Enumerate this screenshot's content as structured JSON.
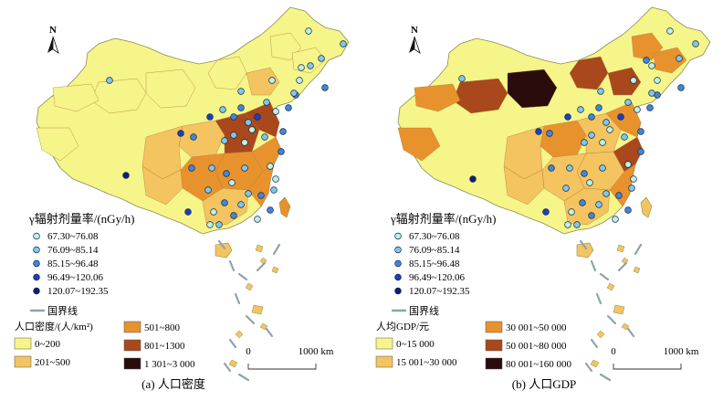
{
  "panels": [
    {
      "id": "a",
      "caption": "(a) 人口密度",
      "points_legend": {
        "title": "γ辐射剂量率/(nGy/h)",
        "classes": [
          {
            "label": "67.30~76.08",
            "color": "#bdf0e8"
          },
          {
            "label": "76.09~85.14",
            "color": "#7ec8ee"
          },
          {
            "label": "85.15~96.48",
            "color": "#3f86e0"
          },
          {
            "label": "96.49~120.06",
            "color": "#1b3fc8"
          },
          {
            "label": "120.07~192.35",
            "color": "#0e1d80"
          }
        ],
        "border_label": "国界线"
      },
      "fill_legend": {
        "title": "人口密度/(人/km²)",
        "classes": [
          {
            "label": "0~200",
            "color": "#f5f58a"
          },
          {
            "label": "201~500",
            "color": "#f3c460"
          },
          {
            "label": "501~800",
            "color": "#e8922e"
          },
          {
            "label": "801~1300",
            "color": "#a8481c"
          },
          {
            "label": "1 301~3 000",
            "color": "#2a0c0c"
          }
        ]
      },
      "scale": {
        "zero": "0",
        "end": "1000 km"
      },
      "north": "N"
    },
    {
      "id": "b",
      "caption": "(b) 人口GDP",
      "points_legend": {
        "title": "γ辐射剂量率/(nGy/h)",
        "classes": [
          {
            "label": "67.30~76.08",
            "color": "#bdf0e8"
          },
          {
            "label": "76.09~85.14",
            "color": "#7ec8ee"
          },
          {
            "label": "85.15~96.48",
            "color": "#3f86e0"
          },
          {
            "label": "96.49~120.06",
            "color": "#1b3fc8"
          },
          {
            "label": "120.07~192.35",
            "color": "#0e1d80"
          }
        ],
        "border_label": "国界线"
      },
      "fill_legend": {
        "title": "人均GDP/元",
        "classes": [
          {
            "label": "0~15 000",
            "color": "#f5f58a"
          },
          {
            "label": "15 001~30 000",
            "color": "#f3c460"
          },
          {
            "label": "30 001~50 000",
            "color": "#e8922e"
          },
          {
            "label": "50 001~80 000",
            "color": "#a8481c"
          },
          {
            "label": "80 001~160 000",
            "color": "#2a0c0c"
          }
        ]
      },
      "scale": {
        "zero": "0",
        "end": "1000 km"
      },
      "north": "N"
    }
  ],
  "colors": {
    "border": "#8fa3ad",
    "outline": "#8a8a5a"
  }
}
